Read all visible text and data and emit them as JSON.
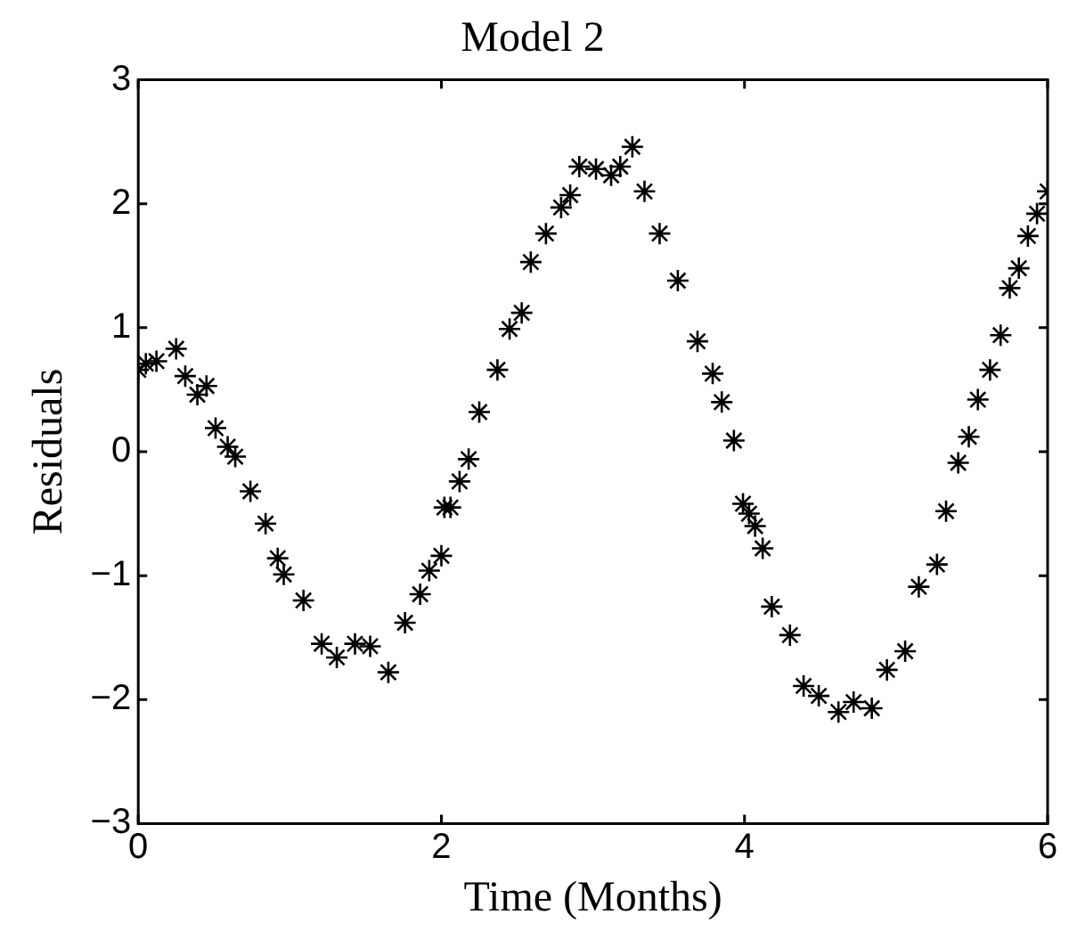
{
  "chart_data": {
    "type": "scatter",
    "title": "Model 2",
    "xlabel": "Time (Months)",
    "ylabel": "Residuals",
    "marker": "cross",
    "grid": false,
    "legend": false,
    "xlim": [
      0,
      6
    ],
    "xticks": [
      0,
      2,
      4,
      6
    ],
    "ylim": [
      -3,
      3
    ],
    "yticks": [
      -3,
      -2,
      -1,
      0,
      1,
      2,
      3
    ],
    "series": [
      {
        "color": "#000000",
        "x": [
          0.0,
          0.05,
          0.12,
          0.25,
          0.31,
          0.39,
          0.45,
          0.51,
          0.59,
          0.64,
          0.74,
          0.84,
          0.92,
          0.96,
          1.09,
          1.21,
          1.31,
          1.43,
          1.53,
          1.65,
          1.76,
          1.86,
          1.92,
          2.0,
          2.02,
          2.06,
          2.12,
          2.18,
          2.25,
          2.37,
          2.45,
          2.53,
          2.59,
          2.69,
          2.79,
          2.85,
          2.91,
          3.02,
          3.12,
          3.18,
          3.26,
          3.34,
          3.44,
          3.56,
          3.69,
          3.79,
          3.85,
          3.93,
          3.99,
          4.03,
          4.07,
          4.12,
          4.18,
          4.3,
          4.39,
          4.49,
          4.62,
          4.72,
          4.84,
          4.94,
          5.06,
          5.15,
          5.27,
          5.33,
          5.41,
          5.48,
          5.54,
          5.62,
          5.69,
          5.75,
          5.81,
          5.87,
          5.93,
          6.0
        ],
        "values": [
          0.66,
          0.71,
          0.73,
          0.83,
          0.61,
          0.46,
          0.53,
          0.19,
          0.04,
          -0.04,
          -0.32,
          -0.58,
          -0.86,
          -0.99,
          -1.2,
          -1.55,
          -1.66,
          -1.55,
          -1.57,
          -1.78,
          -1.38,
          -1.15,
          -0.96,
          -0.84,
          -0.45,
          -0.45,
          -0.24,
          -0.06,
          0.32,
          0.66,
          0.99,
          1.12,
          1.53,
          1.76,
          1.97,
          2.07,
          2.3,
          2.28,
          2.23,
          2.3,
          2.46,
          2.1,
          1.76,
          1.38,
          0.89,
          0.63,
          0.4,
          0.09,
          -0.42,
          -0.5,
          -0.6,
          -0.78,
          -1.25,
          -1.48,
          -1.89,
          -1.97,
          -2.1,
          -2.02,
          -2.07,
          -1.76,
          -1.61,
          -1.09,
          -0.91,
          -0.48,
          -0.09,
          0.12,
          0.42,
          0.66,
          0.94,
          1.32,
          1.48,
          1.74,
          1.92,
          2.1
        ]
      }
    ]
  }
}
